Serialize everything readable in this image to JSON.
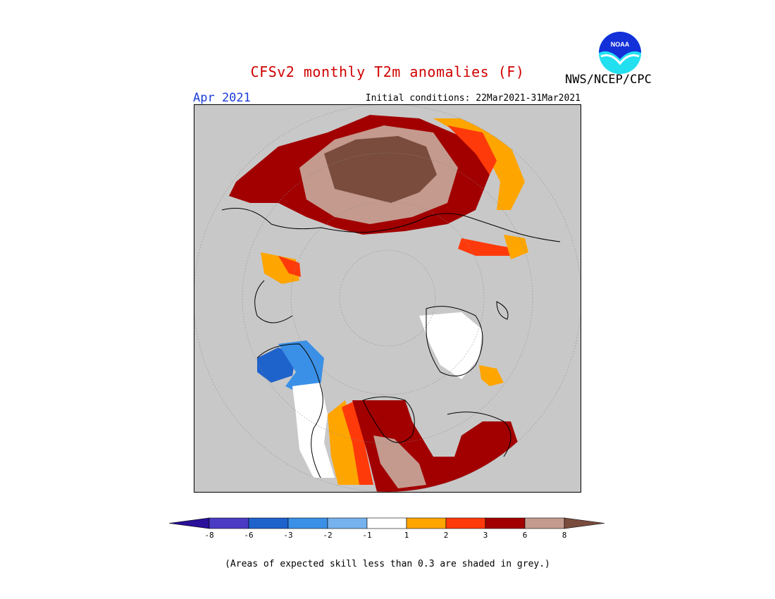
{
  "header": {
    "title": "CFSv2 monthly T2m anomalies (F)",
    "month": "Apr 2021",
    "initial_conditions": "Initial conditions: 22Mar2021-31Mar2021",
    "agency": "NWS/NCEP/CPC",
    "logo_text": "NOAA"
  },
  "colorbar": {
    "labels": [
      "-8",
      "-6",
      "-3",
      "-2",
      "-1",
      "1",
      "2",
      "3",
      "6",
      "8"
    ],
    "colors": [
      "#2a0f9a",
      "#4a3bc4",
      "#1e62cc",
      "#3a90e6",
      "#76b2ee",
      "#ffffff",
      "#ffa500",
      "#ff3a0a",
      "#a20000",
      "#c49a8e",
      "#7a4c3e"
    ]
  },
  "footnote": "(Areas of expected skill less than 0.3 are shaded in grey.)",
  "colors": {
    "title": "#d00000",
    "month": "#1a3cd8",
    "skill_grey": "#c8c8c8"
  }
}
